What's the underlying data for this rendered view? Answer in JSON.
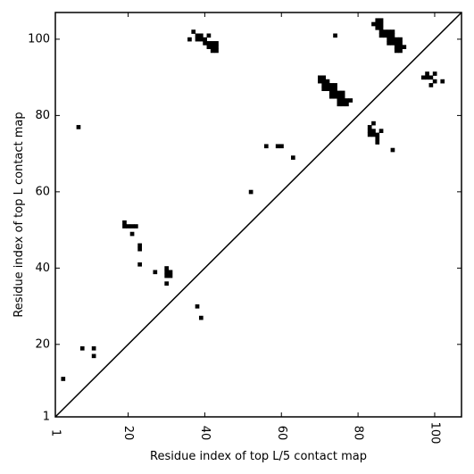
{
  "chart_data": {
    "type": "scatter",
    "xlabel": "Residue index of top L/5 contact map",
    "ylabel": "Residue index of top L contact map",
    "xlim": [
      1,
      107
    ],
    "ylim": [
      1,
      107
    ],
    "x_ticks": [
      1,
      20,
      40,
      60,
      80,
      100
    ],
    "y_ticks": [
      1,
      20,
      40,
      60,
      80,
      100
    ],
    "grid": false,
    "diagonal": true,
    "marker_color": "#000000",
    "points": [
      [
        37,
        102
      ],
      [
        36,
        100
      ],
      [
        38,
        101
      ],
      [
        39,
        101
      ],
      [
        38,
        100
      ],
      [
        39,
        100
      ],
      [
        40,
        100
      ],
      [
        41,
        101
      ],
      [
        40,
        99
      ],
      [
        41,
        99
      ],
      [
        42,
        99
      ],
      [
        43,
        99
      ],
      [
        41,
        98
      ],
      [
        42,
        98
      ],
      [
        43,
        98
      ],
      [
        42,
        97
      ],
      [
        43,
        97
      ],
      [
        74,
        101
      ],
      [
        84,
        104
      ],
      [
        85,
        104
      ],
      [
        85,
        105
      ],
      [
        86,
        105
      ],
      [
        85,
        103
      ],
      [
        86,
        104
      ],
      [
        86,
        103
      ],
      [
        86,
        102
      ],
      [
        87,
        102
      ],
      [
        86,
        101
      ],
      [
        87,
        101
      ],
      [
        88,
        102
      ],
      [
        89,
        102
      ],
      [
        88,
        101
      ],
      [
        89,
        101
      ],
      [
        88,
        100
      ],
      [
        89,
        100
      ],
      [
        88,
        99
      ],
      [
        89,
        99
      ],
      [
        90,
        100
      ],
      [
        91,
        100
      ],
      [
        90,
        99
      ],
      [
        91,
        99
      ],
      [
        90,
        98
      ],
      [
        91,
        98
      ],
      [
        92,
        98
      ],
      [
        90,
        97
      ],
      [
        91,
        97
      ],
      [
        70,
        90
      ],
      [
        71,
        90
      ],
      [
        70,
        89
      ],
      [
        71,
        89
      ],
      [
        72,
        89
      ],
      [
        71,
        88
      ],
      [
        72,
        88
      ],
      [
        73,
        88
      ],
      [
        74,
        88
      ],
      [
        71,
        87
      ],
      [
        72,
        87
      ],
      [
        73,
        87
      ],
      [
        74,
        87
      ],
      [
        73,
        86
      ],
      [
        74,
        86
      ],
      [
        75,
        86
      ],
      [
        76,
        86
      ],
      [
        73,
        85
      ],
      [
        74,
        85
      ],
      [
        75,
        85
      ],
      [
        76,
        85
      ],
      [
        75,
        84
      ],
      [
        76,
        84
      ],
      [
        77,
        84
      ],
      [
        78,
        84
      ],
      [
        75,
        83
      ],
      [
        76,
        83
      ],
      [
        77,
        83
      ],
      [
        98,
        91
      ],
      [
        100,
        91
      ],
      [
        97,
        90
      ],
      [
        98,
        90
      ],
      [
        99,
        90
      ],
      [
        100,
        89
      ],
      [
        102,
        89
      ],
      [
        99,
        88
      ],
      [
        7,
        77
      ],
      [
        84,
        78
      ],
      [
        83,
        77
      ],
      [
        83,
        76
      ],
      [
        84,
        76
      ],
      [
        86,
        76
      ],
      [
        83,
        75
      ],
      [
        84,
        75
      ],
      [
        85,
        75
      ],
      [
        85,
        74
      ],
      [
        85,
        73
      ],
      [
        89,
        71
      ],
      [
        56,
        72
      ],
      [
        59,
        72
      ],
      [
        60,
        72
      ],
      [
        63,
        69
      ],
      [
        52,
        60
      ],
      [
        19,
        52
      ],
      [
        19,
        51
      ],
      [
        20,
        51
      ],
      [
        21,
        51
      ],
      [
        22,
        51
      ],
      [
        21,
        49
      ],
      [
        23,
        46
      ],
      [
        23,
        45
      ],
      [
        23,
        41
      ],
      [
        27,
        39
      ],
      [
        30,
        40
      ],
      [
        30,
        39
      ],
      [
        31,
        39
      ],
      [
        30,
        38
      ],
      [
        31,
        38
      ],
      [
        30,
        36
      ],
      [
        38,
        30
      ],
      [
        39,
        27
      ],
      [
        8,
        19
      ],
      [
        11,
        19
      ],
      [
        11,
        17
      ],
      [
        3,
        11
      ]
    ]
  }
}
